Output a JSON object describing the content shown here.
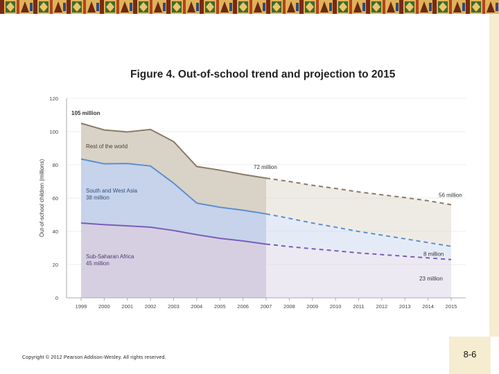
{
  "slide": {
    "copyright": "Copyright © 2012 Pearson Addison-Wesley. All rights reserved.",
    "page_number": "8-6"
  },
  "colors": {
    "banner_base": "#e0b25a",
    "rest_fill": "#d9d2c6",
    "rest_line": "#8a7966",
    "asia_fill": "#c6d3ea",
    "asia_line": "#5b8fd3",
    "africa_fill": "#d6cfe2",
    "africa_line": "#7b5cb8"
  },
  "chart_data": {
    "type": "area",
    "title": "Figure 4.  Out-of-school trend and projection to 2015",
    "ylabel": "Out-of-school children (millions)",
    "xlabel": "",
    "ylim": [
      0,
      120
    ],
    "yticks": [
      "0",
      "20",
      "40",
      "60",
      "80",
      "100",
      "120"
    ],
    "x": [
      "1999",
      "2000",
      "2001",
      "2002",
      "2003",
      "2004",
      "2005",
      "2006",
      "2007",
      "2008",
      "2009",
      "2010",
      "2011",
      "2012",
      "2013",
      "2014",
      "2015"
    ],
    "actual_through": "2007",
    "stacked": true,
    "series": [
      {
        "name": "Sub-Saharan Africa",
        "label": "Sub-Saharan Africa",
        "value_label": "45 million",
        "values": [
          45,
          44,
          43.3,
          42.5,
          40.5,
          38,
          35.8,
          34.2,
          32.3,
          30.8,
          29.5,
          28.3,
          27,
          26,
          25,
          24,
          23
        ]
      },
      {
        "name": "South and West Asia",
        "label": "South and West Asia",
        "value_label": "38 million",
        "values": [
          38.5,
          36.6,
          37.5,
          36.8,
          28.5,
          19,
          18.7,
          18.5,
          18.2,
          17,
          15.5,
          14.2,
          12.9,
          11.7,
          10.5,
          9.2,
          8
        ]
      },
      {
        "name": "Rest of the world",
        "label": "Rest of the world",
        "value_label": "",
        "values": [
          21.5,
          20.4,
          19,
          22,
          25,
          22,
          22.3,
          21.5,
          21.5,
          22.2,
          22.7,
          23.3,
          23.8,
          24.3,
          24.8,
          25.2,
          25
        ]
      }
    ],
    "annotations": [
      {
        "text": "105 million",
        "x": "1999",
        "y": 105
      },
      {
        "text": "72 million",
        "x": "2007",
        "y": 72
      },
      {
        "text": "56 million",
        "x": "2015",
        "y": 56
      },
      {
        "text": "8 million",
        "x": "2015",
        "y": 31
      },
      {
        "text": "23 million",
        "x": "2015",
        "y": 23
      }
    ]
  }
}
